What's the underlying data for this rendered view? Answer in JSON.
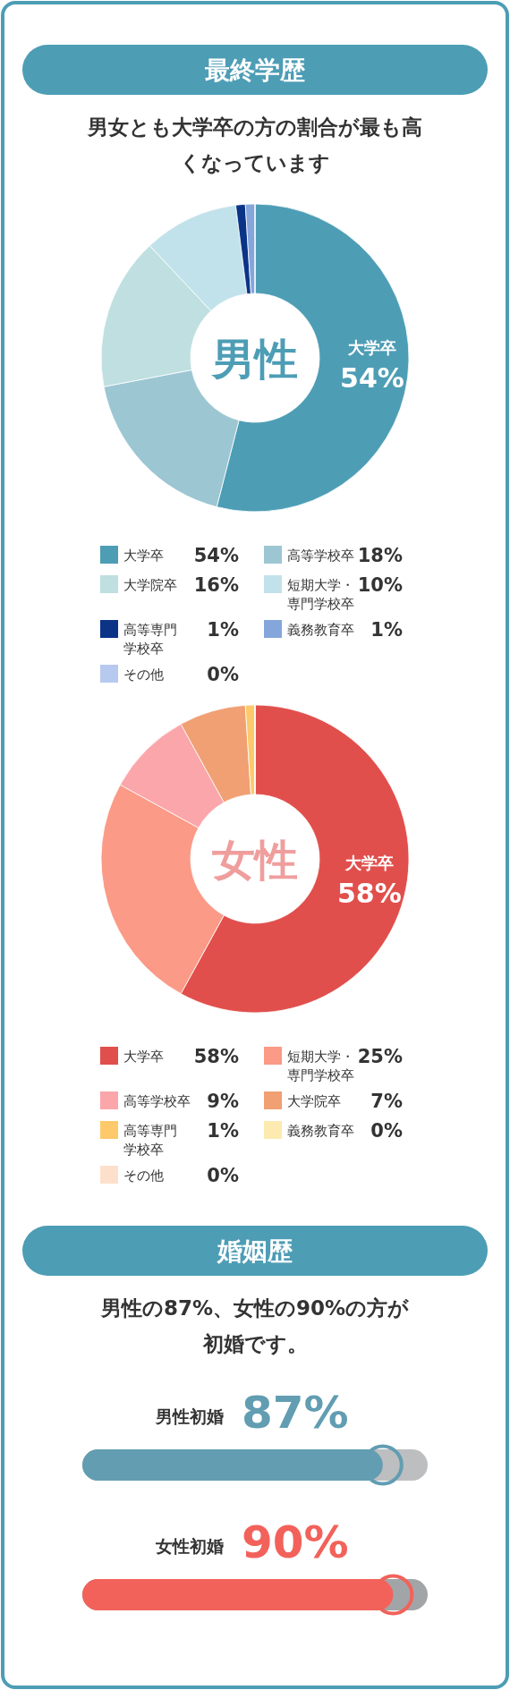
{
  "chart_data": [
    {
      "type": "donut",
      "title": "最終学歴",
      "subtitle": "男女とも大学卒の方の割合が最も高くなっています",
      "annotations": [
        "男性"
      ],
      "categories": [
        "大学卒",
        "高等学校卒",
        "大学院卒",
        "短期大学・専門学校卒",
        "高等専門学校卒",
        "義務教育卒",
        "その他"
      ],
      "values": [
        54,
        18,
        16,
        10,
        1,
        1,
        0
      ],
      "colors": [
        "#4d9db5",
        "#9dc6d3",
        "#bfdfe0",
        "#c2e2eb",
        "#0b3487",
        "#84a6db",
        "#b8c9f0"
      ],
      "value_labels": [
        "54%",
        "18%",
        "16%",
        "10%",
        "1%",
        "1%",
        "0%"
      ],
      "legend": "bottom"
    },
    {
      "type": "donut",
      "annotations": [
        "女性"
      ],
      "categories": [
        "大学卒",
        "短期大学・専門学校卒",
        "高等学校卒",
        "大学院卒",
        "高等専門学校卒",
        "義務教育卒",
        "その他"
      ],
      "values": [
        58,
        25,
        9,
        7,
        1,
        0,
        0
      ],
      "colors": [
        "#e14f4c",
        "#fb9a86",
        "#fba6aa",
        "#f0a073",
        "#fec96a",
        "#fdeab0",
        "#fde0cc"
      ],
      "value_labels": [
        "58%",
        "25%",
        "9%",
        "7%",
        "1%",
        "0%",
        "0%"
      ],
      "legend": "bottom"
    },
    {
      "type": "bar",
      "orientation": "horizontal",
      "title": "婚姻歴",
      "subtitle": "男性の87%、女性の90%の方が初婚です。",
      "categories": [
        "男性初婚",
        "女性初婚"
      ],
      "values": [
        87,
        90
      ],
      "colors": [
        "#629db2",
        "#f2625a"
      ],
      "xlim": [
        0,
        100
      ],
      "value_labels": [
        "87%",
        "90%"
      ]
    }
  ]
}
